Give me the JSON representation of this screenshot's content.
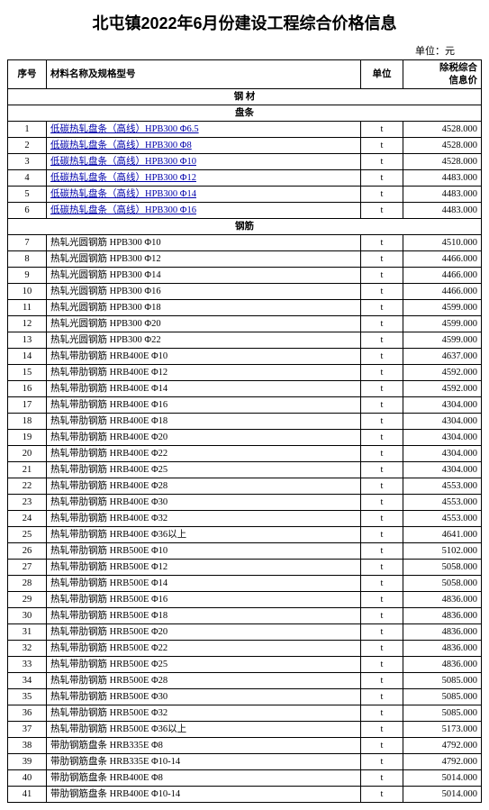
{
  "title": "北屯镇2022年6月份建设工程综合价格信息",
  "unit_label": "单位：元",
  "columns": {
    "seq": "序号",
    "name": "材料名称及规格型号",
    "unit": "单位",
    "price": "除税综合\n信息价"
  },
  "section_top": "钢  材",
  "subsection_1": "盘条",
  "subsection_2": "钢筋",
  "rows_1": [
    {
      "seq": 1,
      "name": "低碳热轧盘条（高线）HPB300 Φ6.5",
      "unit": "t",
      "price": "4528.000",
      "link": true
    },
    {
      "seq": 2,
      "name": "低碳热轧盘条（高线）HPB300 Φ8",
      "unit": "t",
      "price": "4528.000",
      "link": true
    },
    {
      "seq": 3,
      "name": "低碳热轧盘条（高线）HPB300 Φ10",
      "unit": "t",
      "price": "4528.000",
      "link": true
    },
    {
      "seq": 4,
      "name": "低碳热轧盘条（高线）HPB300 Φ12",
      "unit": "t",
      "price": "4483.000",
      "link": true
    },
    {
      "seq": 5,
      "name": "低碳热轧盘条（高线）HPB300 Φ14",
      "unit": "t",
      "price": "4483.000",
      "link": true
    },
    {
      "seq": 6,
      "name": "低碳热轧盘条（高线）HPB300 Φ16",
      "unit": "t",
      "price": "4483.000",
      "link": true
    }
  ],
  "rows_2": [
    {
      "seq": 7,
      "name": "热轧光圆钢筋 HPB300 Φ10",
      "unit": "t",
      "price": "4510.000",
      "link": false
    },
    {
      "seq": 8,
      "name": "热轧光圆钢筋 HPB300 Φ12",
      "unit": "t",
      "price": "4466.000",
      "link": false
    },
    {
      "seq": 9,
      "name": "热轧光圆钢筋 HPB300 Φ14",
      "unit": "t",
      "price": "4466.000",
      "link": false
    },
    {
      "seq": 10,
      "name": "热轧光圆钢筋 HPB300 Φ16",
      "unit": "t",
      "price": "4466.000",
      "link": false
    },
    {
      "seq": 11,
      "name": "热轧光圆钢筋 HPB300 Φ18",
      "unit": "t",
      "price": "4599.000",
      "link": false
    },
    {
      "seq": 12,
      "name": "热轧光圆钢筋 HPB300 Φ20",
      "unit": "t",
      "price": "4599.000",
      "link": false
    },
    {
      "seq": 13,
      "name": "热轧光圆钢筋 HPB300 Φ22",
      "unit": "t",
      "price": "4599.000",
      "link": false
    },
    {
      "seq": 14,
      "name": "热轧带肋钢筋 HRB400E Φ10",
      "unit": "t",
      "price": "4637.000",
      "link": false
    },
    {
      "seq": 15,
      "name": "热轧带肋钢筋 HRB400E Φ12",
      "unit": "t",
      "price": "4592.000",
      "link": false
    },
    {
      "seq": 16,
      "name": "热轧带肋钢筋 HRB400E Φ14",
      "unit": "t",
      "price": "4592.000",
      "link": false
    },
    {
      "seq": 17,
      "name": "热轧带肋钢筋 HRB400E Φ16",
      "unit": "t",
      "price": "4304.000",
      "link": false
    },
    {
      "seq": 18,
      "name": "热轧带肋钢筋 HRB400E Φ18",
      "unit": "t",
      "price": "4304.000",
      "link": false
    },
    {
      "seq": 19,
      "name": "热轧带肋钢筋 HRB400E Φ20",
      "unit": "t",
      "price": "4304.000",
      "link": false
    },
    {
      "seq": 20,
      "name": "热轧带肋钢筋 HRB400E Φ22",
      "unit": "t",
      "price": "4304.000",
      "link": false
    },
    {
      "seq": 21,
      "name": "热轧带肋钢筋 HRB400E Φ25",
      "unit": "t",
      "price": "4304.000",
      "link": false
    },
    {
      "seq": 22,
      "name": "热轧带肋钢筋 HRB400E Φ28",
      "unit": "t",
      "price": "4553.000",
      "link": false
    },
    {
      "seq": 23,
      "name": "热轧带肋钢筋 HRB400E Φ30",
      "unit": "t",
      "price": "4553.000",
      "link": false
    },
    {
      "seq": 24,
      "name": "热轧带肋钢筋 HRB400E Φ32",
      "unit": "t",
      "price": "4553.000",
      "link": false
    },
    {
      "seq": 25,
      "name": "热轧带肋钢筋 HRB400E Φ36以上",
      "unit": "t",
      "price": "4641.000",
      "link": false
    },
    {
      "seq": 26,
      "name": "热轧带肋钢筋 HRB500E Φ10",
      "unit": "t",
      "price": "5102.000",
      "link": false
    },
    {
      "seq": 27,
      "name": "热轧带肋钢筋 HRB500E Φ12",
      "unit": "t",
      "price": "5058.000",
      "link": false
    },
    {
      "seq": 28,
      "name": "热轧带肋钢筋 HRB500E Φ14",
      "unit": "t",
      "price": "5058.000",
      "link": false
    },
    {
      "seq": 29,
      "name": "热轧带肋钢筋 HRB500E Φ16",
      "unit": "t",
      "price": "4836.000",
      "link": false
    },
    {
      "seq": 30,
      "name": "热轧带肋钢筋 HRB500E Φ18",
      "unit": "t",
      "price": "4836.000",
      "link": false
    },
    {
      "seq": 31,
      "name": "热轧带肋钢筋 HRB500E Φ20",
      "unit": "t",
      "price": "4836.000",
      "link": false
    },
    {
      "seq": 32,
      "name": "热轧带肋钢筋 HRB500E Φ22",
      "unit": "t",
      "price": "4836.000",
      "link": false
    },
    {
      "seq": 33,
      "name": "热轧带肋钢筋 HRB500E Φ25",
      "unit": "t",
      "price": "4836.000",
      "link": false
    },
    {
      "seq": 34,
      "name": "热轧带肋钢筋 HRB500E Φ28",
      "unit": "t",
      "price": "5085.000",
      "link": false
    },
    {
      "seq": 35,
      "name": "热轧带肋钢筋 HRB500E Φ30",
      "unit": "t",
      "price": "5085.000",
      "link": false
    },
    {
      "seq": 36,
      "name": "热轧带肋钢筋 HRB500E Φ32",
      "unit": "t",
      "price": "5085.000",
      "link": false
    },
    {
      "seq": 37,
      "name": "热轧带肋钢筋 HRB500E Φ36以上",
      "unit": "t",
      "price": "5173.000",
      "link": false
    },
    {
      "seq": 38,
      "name": "带肋钢筋盘条 HRB335E Φ8",
      "unit": "t",
      "price": "4792.000",
      "link": false
    },
    {
      "seq": 39,
      "name": "带肋钢筋盘条 HRB335E Φ10-14",
      "unit": "t",
      "price": "4792.000",
      "link": false
    },
    {
      "seq": 40,
      "name": "带肋钢筋盘条 HRB400E Φ8",
      "unit": "t",
      "price": "5014.000",
      "link": false
    },
    {
      "seq": 41,
      "name": "带肋钢筋盘条 HRB400E Φ10-14",
      "unit": "t",
      "price": "5014.000",
      "link": false
    }
  ]
}
